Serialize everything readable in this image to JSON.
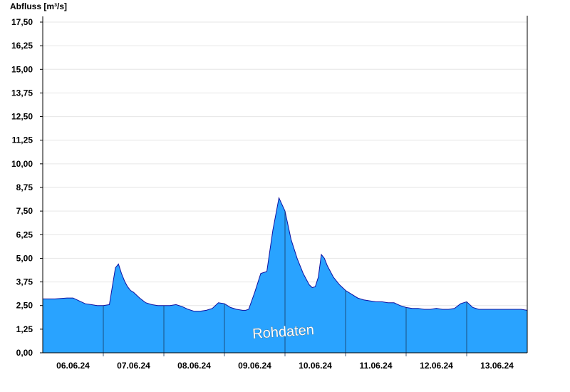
{
  "chart_data": {
    "type": "area",
    "ylabel": "Abfluss [m³/s]",
    "watermark": "Rohdaten",
    "ylim": [
      0,
      17.5
    ],
    "xlim": [
      -0.5,
      7.5
    ],
    "y_ticks": [
      "0,00",
      "1,25",
      "2,50",
      "3,75",
      "5,00",
      "6,25",
      "7,50",
      "8,75",
      "10,00",
      "11,25",
      "12,50",
      "13,75",
      "15,00",
      "16,25",
      "17,50"
    ],
    "x_ticks": [
      {
        "pos": 0,
        "label": "06.06.24"
      },
      {
        "pos": 1,
        "label": "07.06.24"
      },
      {
        "pos": 2,
        "label": "08.06.24"
      },
      {
        "pos": 3,
        "label": "09.06.24"
      },
      {
        "pos": 4,
        "label": "10.06.24"
      },
      {
        "pos": 5,
        "label": "11.06.24"
      },
      {
        "pos": 6,
        "label": "12.06.24"
      },
      {
        "pos": 7,
        "label": "13.06.24"
      }
    ],
    "day_boundaries": [
      0.5,
      1.5,
      2.5,
      3.5,
      4.5,
      5.5,
      6.5
    ],
    "fill_color": "#29a3ff",
    "line_color": "#1010a0",
    "grid": true,
    "series": [
      {
        "x": [
          -0.5,
          -0.3,
          -0.1,
          0.0,
          0.1,
          0.2,
          0.3,
          0.4,
          0.5,
          0.6,
          0.7,
          0.75,
          0.8,
          0.85,
          0.9,
          0.95,
          1.0,
          1.1,
          1.2,
          1.3,
          1.4,
          1.5,
          1.6,
          1.7,
          1.8,
          1.9,
          2.0,
          2.1,
          2.2,
          2.3,
          2.4,
          2.5,
          2.6,
          2.7,
          2.8,
          2.85,
          2.9,
          3.0,
          3.1,
          3.2,
          3.3,
          3.4,
          3.5,
          3.6,
          3.7,
          3.8,
          3.9,
          3.95,
          4.0,
          4.05,
          4.1,
          4.15,
          4.2,
          4.3,
          4.4,
          4.5,
          4.6,
          4.7,
          4.75,
          4.8,
          4.9,
          5.0,
          5.1,
          5.2,
          5.3,
          5.4,
          5.5,
          5.6,
          5.7,
          5.8,
          5.9,
          6.0,
          6.1,
          6.2,
          6.3,
          6.4,
          6.5,
          6.6,
          6.7,
          6.8,
          6.9,
          7.0,
          7.1,
          7.2,
          7.3,
          7.4,
          7.5
        ],
        "y": [
          2.85,
          2.85,
          2.9,
          2.9,
          2.75,
          2.6,
          2.55,
          2.5,
          2.5,
          2.55,
          4.5,
          4.7,
          4.2,
          3.8,
          3.5,
          3.3,
          3.2,
          2.9,
          2.65,
          2.55,
          2.5,
          2.5,
          2.5,
          2.55,
          2.45,
          2.3,
          2.2,
          2.2,
          2.25,
          2.35,
          2.65,
          2.6,
          2.4,
          2.3,
          2.25,
          2.25,
          2.3,
          3.2,
          4.2,
          4.3,
          6.5,
          8.2,
          7.5,
          6.0,
          5.0,
          4.2,
          3.6,
          3.45,
          3.5,
          4.0,
          5.2,
          5.0,
          4.6,
          4.0,
          3.6,
          3.3,
          3.1,
          2.9,
          2.85,
          2.8,
          2.75,
          2.7,
          2.7,
          2.65,
          2.65,
          2.5,
          2.4,
          2.35,
          2.35,
          2.3,
          2.3,
          2.35,
          2.3,
          2.3,
          2.35,
          2.6,
          2.7,
          2.4,
          2.3,
          2.3,
          2.3,
          2.3,
          2.3,
          2.3,
          2.3,
          2.3,
          2.25
        ]
      }
    ]
  }
}
